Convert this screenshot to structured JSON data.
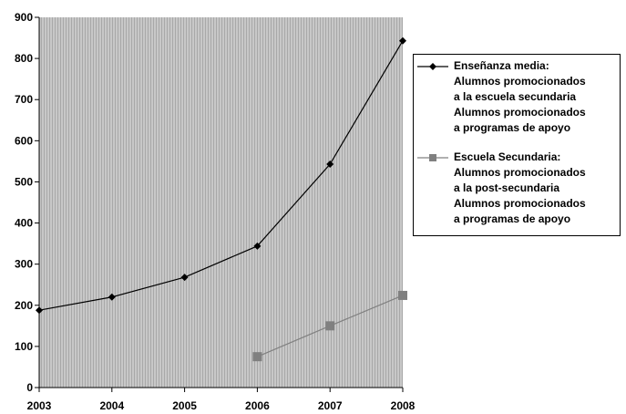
{
  "chart_data": {
    "type": "line",
    "x": [
      "2003",
      "2004",
      "2005",
      "2006",
      "2007",
      "2008"
    ],
    "ylim": [
      0,
      900
    ],
    "yticks": [
      "0",
      "100",
      "200",
      "300",
      "400",
      "500",
      "600",
      "700",
      "800",
      "900"
    ],
    "grid": false,
    "plot_background": "#c8c8c8",
    "legend_position": "right",
    "series": [
      {
        "name_lines": [
          "Enseñanza media:",
          "Alumnos promocionados",
          "a la escuela secundaria",
          "Alumnos promocionados",
          "a programas de apoyo"
        ],
        "values": [
          188,
          220,
          268,
          344,
          543,
          843
        ],
        "color": "#000000",
        "marker": "diamond"
      },
      {
        "name_lines": [
          "Escuela Secundaria:",
          "Alumnos promocionados",
          "a la post-secundaria",
          "Alumnos promocionados",
          "a programas de apoyo"
        ],
        "values": [
          null,
          null,
          null,
          75,
          150,
          224
        ],
        "color": "#808080",
        "marker": "square"
      }
    ]
  }
}
